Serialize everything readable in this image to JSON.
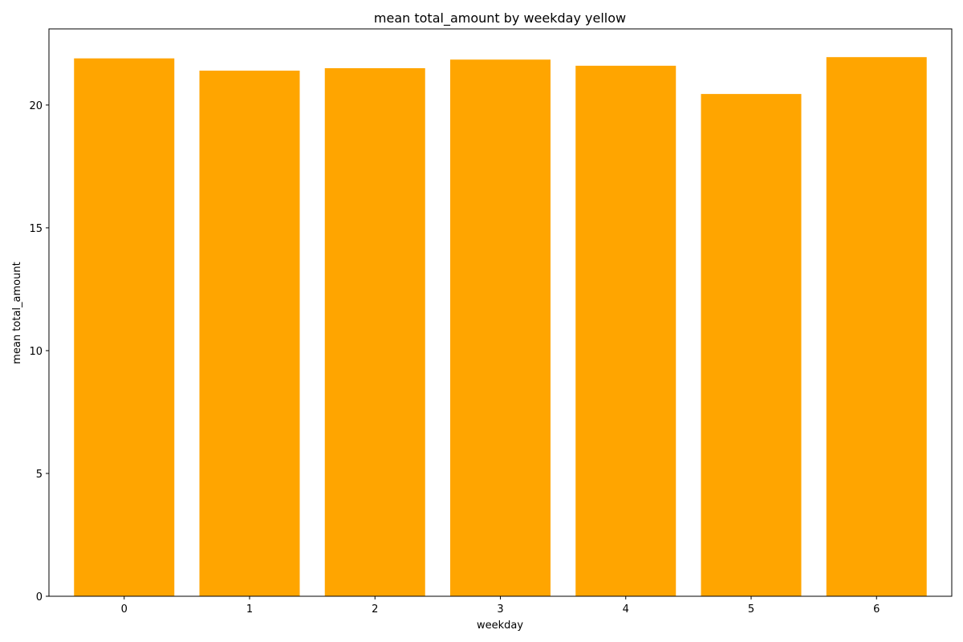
{
  "chart_data": {
    "type": "bar",
    "title": "mean total_amount by weekday yellow",
    "xlabel": "weekday",
    "ylabel": "mean total_amount",
    "categories": [
      "0",
      "1",
      "2",
      "3",
      "4",
      "5",
      "6"
    ],
    "values": [
      21.9,
      21.4,
      21.5,
      21.85,
      21.6,
      20.45,
      21.95
    ],
    "ylim": [
      0,
      23.1
    ],
    "yticks": [
      0,
      5,
      10,
      15,
      20
    ],
    "ytick_labels": [
      "0",
      "5",
      "10",
      "15",
      "20"
    ],
    "bar_color": "#FFA500",
    "grid": false,
    "legend": "none"
  }
}
